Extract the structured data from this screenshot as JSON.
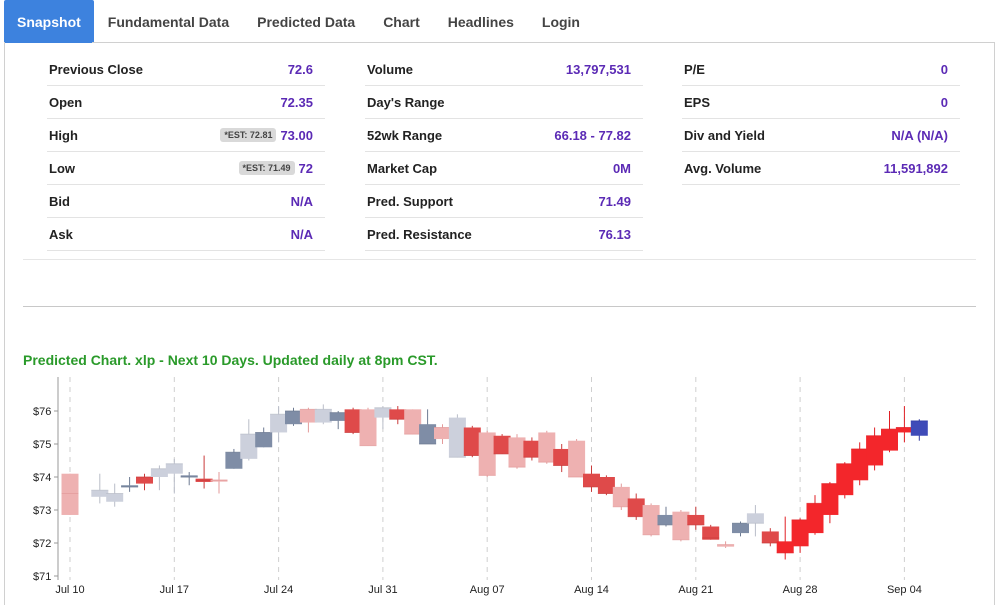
{
  "tabs": [
    {
      "label": "Snapshot",
      "active": true
    },
    {
      "label": "Fundamental Data",
      "active": false
    },
    {
      "label": "Predicted Data",
      "active": false
    },
    {
      "label": "Chart",
      "active": false
    },
    {
      "label": "Headlines",
      "active": false
    },
    {
      "label": "Login",
      "active": false
    }
  ],
  "stats": {
    "col1": [
      {
        "label": "Previous Close",
        "value": "72.6"
      },
      {
        "label": "Open",
        "value": "72.35"
      },
      {
        "label": "High",
        "value": "73.00",
        "est": "*EST: 72.81"
      },
      {
        "label": "Low",
        "value": "72",
        "est": "*EST: 71.49"
      },
      {
        "label": "Bid",
        "value": "N/A"
      },
      {
        "label": "Ask",
        "value": "N/A"
      }
    ],
    "col2": [
      {
        "label": "Volume",
        "value": "13,797,531"
      },
      {
        "label": "Day's Range",
        "value": ""
      },
      {
        "label": "52wk Range",
        "value": "66.18 - 77.82"
      },
      {
        "label": "Market Cap",
        "value": "0M"
      },
      {
        "label": "Pred. Support",
        "value": "71.49"
      },
      {
        "label": "Pred. Resistance",
        "value": "76.13"
      }
    ],
    "col3": [
      {
        "label": "P/E",
        "value": "0"
      },
      {
        "label": "EPS",
        "value": "0"
      },
      {
        "label": "Div and Yield",
        "value": "N/A (N/A)"
      },
      {
        "label": "Avg. Volume",
        "value": "11,591,892"
      }
    ]
  },
  "chart_title": "Predicted Chart. xlp - Next 10 Days. Updated daily at 8pm CST.",
  "colors": {
    "accent_tab": "#3d82de",
    "value_text": "#5b2ab5",
    "chart_title": "#2a9a2a",
    "candle_pink": "#eeb1b1",
    "candle_red": "#df4a4a",
    "candle_bright_red": "#f3262b",
    "candle_gray": "#ccd0dc",
    "candle_slate": "#7f8da6",
    "candle_blue": "#3f4bb8"
  },
  "chart_data": {
    "type": "candlestick",
    "title": "Predicted Chart. xlp - Next 10 Days. Updated daily at 8pm CST.",
    "y_ticks": [
      "$71",
      "$72",
      "$73",
      "$74",
      "$75",
      "$76"
    ],
    "ylim": [
      71,
      76.7
    ],
    "x_ticks": [
      "Jul 10",
      "Jul 17",
      "Jul 24",
      "Jul 31",
      "Aug 07",
      "Aug 14",
      "Aug 21",
      "Aug 28",
      "Sep 04"
    ],
    "x_tick_day_index": [
      0,
      7,
      14,
      21,
      28,
      35,
      42,
      49,
      56
    ],
    "candles": [
      {
        "d": 0,
        "o": 73.5,
        "c": 73.5,
        "bl": 72.85,
        "bh": 74.1,
        "l": 72.85,
        "h": 74.1,
        "k": "pink"
      },
      {
        "d": 2,
        "o": 73.45,
        "c": 73.6,
        "bl": 73.4,
        "bh": 73.6,
        "l": 73.2,
        "h": 74.1,
        "k": "gray"
      },
      {
        "d": 3,
        "o": 73.25,
        "c": 73.5,
        "bl": 73.25,
        "bh": 73.5,
        "l": 73.1,
        "h": 73.8,
        "k": "gray"
      },
      {
        "d": 4,
        "o": 73.7,
        "c": 73.7,
        "bl": 73.7,
        "bh": 73.75,
        "l": 73.55,
        "h": 74.0,
        "k": "slate"
      },
      {
        "d": 5,
        "o": 73.8,
        "c": 74.0,
        "bl": 73.8,
        "bh": 74.0,
        "l": 73.6,
        "h": 74.1,
        "k": "red"
      },
      {
        "d": 6,
        "o": 74.0,
        "c": 74.25,
        "bl": 74.0,
        "bh": 74.25,
        "l": 73.6,
        "h": 74.35,
        "k": "gray"
      },
      {
        "d": 7,
        "o": 74.1,
        "c": 74.4,
        "bl": 74.1,
        "bh": 74.4,
        "l": 73.5,
        "h": 74.55,
        "k": "gray"
      },
      {
        "d": 8,
        "o": 74.05,
        "c": 74.0,
        "bl": 74.0,
        "bh": 74.05,
        "l": 73.75,
        "h": 74.15,
        "k": "slate"
      },
      {
        "d": 9,
        "o": 73.9,
        "c": 73.9,
        "bl": 73.85,
        "bh": 73.95,
        "l": 73.65,
        "h": 74.65,
        "k": "red"
      },
      {
        "d": 10,
        "o": 73.9,
        "c": 73.9,
        "bl": 73.88,
        "bh": 73.92,
        "l": 73.5,
        "h": 74.15,
        "k": "pink"
      },
      {
        "d": 11,
        "o": 74.25,
        "c": 74.75,
        "bl": 74.25,
        "bh": 74.75,
        "l": 74.25,
        "h": 74.85,
        "k": "slate"
      },
      {
        "d": 12,
        "o": 74.55,
        "c": 75.3,
        "bl": 74.55,
        "bh": 75.3,
        "l": 74.5,
        "h": 75.75,
        "k": "gray"
      },
      {
        "d": 13,
        "o": 74.9,
        "c": 75.35,
        "bl": 74.9,
        "bh": 75.35,
        "l": 74.9,
        "h": 75.5,
        "k": "slate"
      },
      {
        "d": 14,
        "o": 75.35,
        "c": 75.9,
        "bl": 75.35,
        "bh": 75.9,
        "l": 75.05,
        "h": 76.15,
        "k": "gray"
      },
      {
        "d": 15,
        "o": 75.7,
        "c": 76.0,
        "bl": 75.6,
        "bh": 76.0,
        "l": 75.55,
        "h": 76.1,
        "k": "slate"
      },
      {
        "d": 16,
        "o": 75.8,
        "c": 76.05,
        "bl": 75.65,
        "bh": 76.05,
        "l": 75.35,
        "h": 76.1,
        "k": "pink"
      },
      {
        "d": 17,
        "o": 75.65,
        "c": 76.05,
        "bl": 75.65,
        "bh": 76.05,
        "l": 75.6,
        "h": 76.2,
        "k": "gray"
      },
      {
        "d": 18,
        "o": 75.7,
        "c": 75.95,
        "bl": 75.7,
        "bh": 75.95,
        "l": 75.45,
        "h": 76.0,
        "k": "slate"
      },
      {
        "d": 19,
        "o": 75.9,
        "c": 75.35,
        "bl": 75.35,
        "bh": 76.05,
        "l": 75.3,
        "h": 76.1,
        "k": "red"
      },
      {
        "d": 20,
        "o": 76.05,
        "c": 74.95,
        "bl": 74.95,
        "bh": 76.05,
        "l": 74.95,
        "h": 76.1,
        "k": "pink"
      },
      {
        "d": 21,
        "o": 75.8,
        "c": 76.1,
        "bl": 75.8,
        "bh": 76.1,
        "l": 75.45,
        "h": 76.15,
        "k": "gray"
      },
      {
        "d": 22,
        "o": 76.05,
        "c": 75.75,
        "bl": 75.75,
        "bh": 76.05,
        "l": 75.6,
        "h": 76.15,
        "k": "red"
      },
      {
        "d": 23,
        "o": 76.05,
        "c": 75.3,
        "bl": 75.3,
        "bh": 76.05,
        "l": 75.3,
        "h": 76.05,
        "k": "pink"
      },
      {
        "d": 24,
        "o": 75.6,
        "c": 75.0,
        "bl": 75.0,
        "bh": 75.6,
        "l": 75.0,
        "h": 76.05,
        "k": "slate"
      },
      {
        "d": 25,
        "o": 75.15,
        "c": 75.5,
        "bl": 75.15,
        "bh": 75.5,
        "l": 75.0,
        "h": 75.6,
        "k": "pink"
      },
      {
        "d": 26,
        "o": 75.8,
        "c": 74.6,
        "bl": 74.6,
        "bh": 75.8,
        "l": 74.6,
        "h": 75.9,
        "k": "gray"
      },
      {
        "d": 27,
        "o": 75.5,
        "c": 74.65,
        "bl": 74.65,
        "bh": 75.5,
        "l": 74.6,
        "h": 75.55,
        "k": "red"
      },
      {
        "d": 28,
        "o": 75.35,
        "c": 74.05,
        "bl": 74.05,
        "bh": 75.35,
        "l": 74.0,
        "h": 75.4,
        "k": "pink"
      },
      {
        "d": 29,
        "o": 75.25,
        "c": 74.7,
        "bl": 74.7,
        "bh": 75.25,
        "l": 74.7,
        "h": 75.3,
        "k": "red"
      },
      {
        "d": 30,
        "o": 75.2,
        "c": 74.3,
        "bl": 74.3,
        "bh": 75.2,
        "l": 74.25,
        "h": 75.3,
        "k": "pink"
      },
      {
        "d": 31,
        "o": 75.1,
        "c": 74.6,
        "bl": 74.6,
        "bh": 75.1,
        "l": 74.5,
        "h": 75.2,
        "k": "red"
      },
      {
        "d": 32,
        "o": 75.35,
        "c": 74.45,
        "bl": 74.45,
        "bh": 75.35,
        "l": 74.4,
        "h": 75.4,
        "k": "pink"
      },
      {
        "d": 33,
        "o": 74.85,
        "c": 74.35,
        "bl": 74.35,
        "bh": 74.85,
        "l": 74.15,
        "h": 75.0,
        "k": "red"
      },
      {
        "d": 34,
        "o": 75.1,
        "c": 74.0,
        "bl": 74.0,
        "bh": 75.1,
        "l": 74.0,
        "h": 75.15,
        "k": "pink"
      },
      {
        "d": 35,
        "o": 74.1,
        "c": 73.7,
        "bl": 73.7,
        "bh": 74.1,
        "l": 73.55,
        "h": 74.35,
        "k": "red"
      },
      {
        "d": 36,
        "o": 74.0,
        "c": 73.5,
        "bl": 73.5,
        "bh": 74.0,
        "l": 73.45,
        "h": 74.05,
        "k": "red"
      },
      {
        "d": 37,
        "o": 73.7,
        "c": 73.1,
        "bl": 73.1,
        "bh": 73.7,
        "l": 73.0,
        "h": 73.8,
        "k": "pink"
      },
      {
        "d": 38,
        "o": 73.35,
        "c": 72.8,
        "bl": 72.8,
        "bh": 73.35,
        "l": 72.7,
        "h": 73.5,
        "k": "red"
      },
      {
        "d": 39,
        "o": 73.15,
        "c": 72.25,
        "bl": 72.25,
        "bh": 73.15,
        "l": 72.2,
        "h": 73.2,
        "k": "pink"
      },
      {
        "d": 40,
        "o": 72.85,
        "c": 72.55,
        "bl": 72.55,
        "bh": 72.85,
        "l": 72.5,
        "h": 73.1,
        "k": "slate"
      },
      {
        "d": 41,
        "o": 72.95,
        "c": 72.1,
        "bl": 72.1,
        "bh": 72.95,
        "l": 72.05,
        "h": 73.0,
        "k": "pink"
      },
      {
        "d": 42,
        "o": 72.85,
        "c": 72.55,
        "bl": 72.55,
        "bh": 72.85,
        "l": 72.4,
        "h": 73.1,
        "k": "red"
      },
      {
        "d": 43,
        "o": 72.5,
        "c": 72.15,
        "bl": 72.1,
        "bh": 72.5,
        "l": 72.1,
        "h": 72.55,
        "k": "red"
      },
      {
        "d": 44,
        "o": 72.05,
        "c": 71.95,
        "bl": 71.9,
        "bh": 71.95,
        "l": 71.85,
        "h": 72.05,
        "k": "pink"
      },
      {
        "d": 45,
        "o": 72.3,
        "c": 72.6,
        "bl": 72.3,
        "bh": 72.6,
        "l": 72.2,
        "h": 72.65,
        "k": "slate"
      },
      {
        "d": 46,
        "o": 72.2,
        "c": 72.6,
        "bl": 72.6,
        "bh": 72.9,
        "l": 72.2,
        "h": 73.15,
        "k": "gray"
      },
      {
        "d": 47,
        "o": 72.35,
        "c": 72.0,
        "bl": 72.0,
        "bh": 72.35,
        "l": 71.9,
        "h": 72.45,
        "k": "red"
      },
      {
        "d": 48,
        "o": 72.05,
        "c": 71.7,
        "bl": 71.7,
        "bh": 72.05,
        "l": 71.5,
        "h": 72.8,
        "k": "bright"
      },
      {
        "d": 49,
        "o": 71.9,
        "c": 72.7,
        "bl": 71.9,
        "bh": 72.7,
        "l": 71.7,
        "h": 72.75,
        "k": "bright"
      },
      {
        "d": 50,
        "o": 72.3,
        "c": 73.2,
        "bl": 72.3,
        "bh": 73.2,
        "l": 72.25,
        "h": 73.45,
        "k": "bright"
      },
      {
        "d": 51,
        "o": 72.85,
        "c": 73.8,
        "bl": 72.85,
        "bh": 73.8,
        "l": 72.6,
        "h": 73.85,
        "k": "bright"
      },
      {
        "d": 52,
        "o": 73.45,
        "c": 74.4,
        "bl": 73.45,
        "bh": 74.4,
        "l": 73.35,
        "h": 74.45,
        "k": "bright"
      },
      {
        "d": 53,
        "o": 73.9,
        "c": 74.85,
        "bl": 73.9,
        "bh": 74.85,
        "l": 73.75,
        "h": 75.05,
        "k": "bright"
      },
      {
        "d": 54,
        "o": 74.35,
        "c": 75.25,
        "bl": 74.35,
        "bh": 75.25,
        "l": 74.2,
        "h": 75.5,
        "k": "bright"
      },
      {
        "d": 55,
        "o": 74.8,
        "c": 75.45,
        "bl": 74.8,
        "bh": 75.45,
        "l": 74.75,
        "h": 76.0,
        "k": "bright"
      },
      {
        "d": 56,
        "o": 75.35,
        "c": 75.5,
        "bl": 75.35,
        "bh": 75.5,
        "l": 75.05,
        "h": 76.15,
        "k": "bright"
      },
      {
        "d": 57,
        "o": 75.25,
        "c": 75.7,
        "bl": 75.25,
        "bh": 75.7,
        "l": 75.1,
        "h": 75.75,
        "k": "blue"
      }
    ]
  }
}
